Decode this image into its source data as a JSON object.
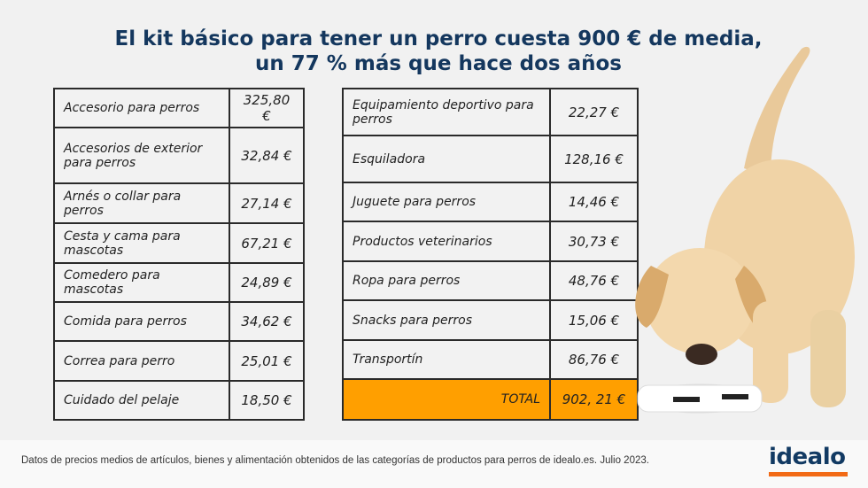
{
  "title": {
    "line1": "El kit básico para tener un perro cuesta 900 € de media,",
    "line2": "un 77 % más que hace dos años"
  },
  "table_left": [
    {
      "item": "Accesorio para perros",
      "price": "325,80 €"
    },
    {
      "item": "Accesorios de exterior para perros",
      "price": "32,84 €"
    },
    {
      "item": "Arnés o collar para perros",
      "price": "27,14 €"
    },
    {
      "item": "Cesta y cama para mascotas",
      "price": "67,21 €"
    },
    {
      "item": "Comedero para mascotas",
      "price": "24,89 €"
    },
    {
      "item": "Comida para perros",
      "price": "34,62 €"
    },
    {
      "item": "Correa para perro",
      "price": "25,01 €"
    },
    {
      "item": "Cuidado del pelaje",
      "price": "18,50 €"
    }
  ],
  "table_right": [
    {
      "item": "Equipamiento deportivo para perros",
      "price": "22,27 €"
    },
    {
      "item": "Esquiladora",
      "price": "128,16 €"
    },
    {
      "item": "Juguete para perros",
      "price": "14,46 €"
    },
    {
      "item": "Productos veterinarios",
      "price": "30,73 €"
    },
    {
      "item": "Ropa para perros",
      "price": "48,76 €"
    },
    {
      "item": "Snacks para perros",
      "price": "15,06 €"
    },
    {
      "item": "Transportín",
      "price": "86,76 €"
    }
  ],
  "total": {
    "label": "TOTAL",
    "price": "902, 21 €"
  },
  "footer": {
    "note": "Datos de precios medios de artículos, bienes y alimentación obtenidos de las categorías de productos para perros de idealo.es. Julio 2023.",
    "logo": "idealo"
  },
  "colors": {
    "title": "#14375e",
    "total_bg": "#ff9f00",
    "logo_bar": "#f26a16"
  }
}
